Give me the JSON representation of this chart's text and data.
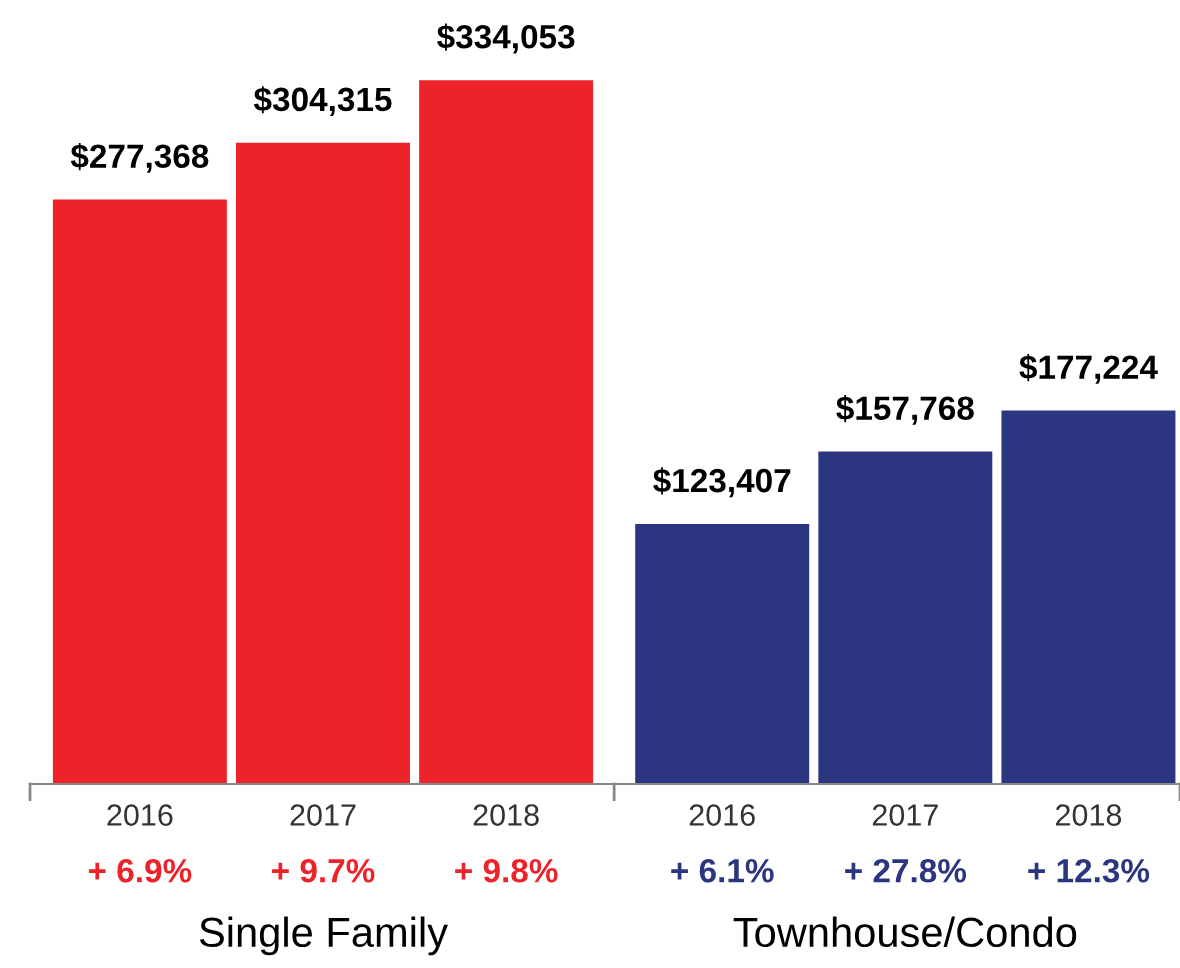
{
  "chart_data": {
    "type": "bar",
    "categories": [
      "2016",
      "2017",
      "2018",
      "2016",
      "2017",
      "2018"
    ],
    "values": [
      277368,
      304315,
      334053,
      123407,
      157768,
      177224
    ],
    "colors": [
      "#ee2229",
      "#ee2229",
      "#ee2229",
      "#2c3580",
      "#2c3580",
      "#2c3580"
    ],
    "value_labels": [
      "$277,368",
      "$304,315",
      "$334,053",
      "$123,407",
      "$157,768",
      "$177,224"
    ],
    "annotations": [
      "+ 6.9%",
      "+ 9.7%",
      "+ 9.8%",
      "+ 6.1%",
      "+ 27.8%",
      "+ 12.3%",
      "Single Family",
      "Townhouse/Condo"
    ],
    "grid": false,
    "legend": false
  }
}
